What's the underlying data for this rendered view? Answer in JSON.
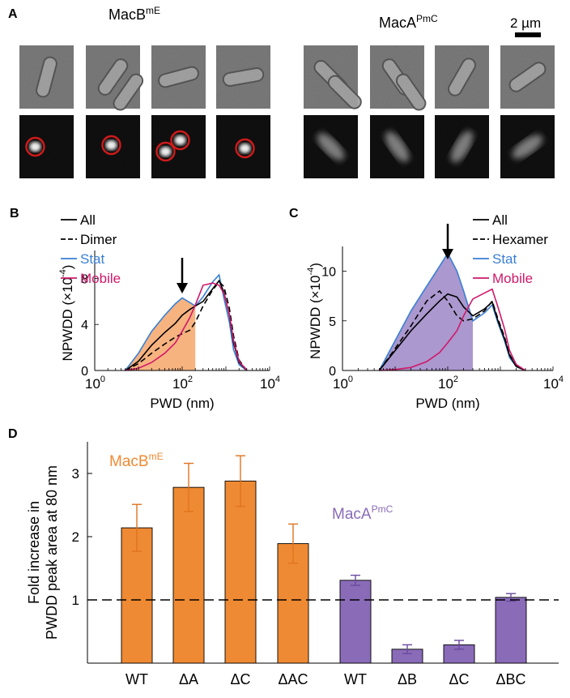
{
  "panel_a": {
    "letter": "A",
    "left_title": "MacB",
    "left_title_sup": "mE",
    "right_title": "MacA",
    "right_title_sup": "PmC",
    "scale_bar_label": "2 µm",
    "cells_left": 4,
    "cells_right": 4
  },
  "chart_data": [
    {
      "panel": "B",
      "type": "line",
      "xscale": "log",
      "xlim": [
        1,
        10000
      ],
      "ylim": [
        0,
        10
      ],
      "xlabel": "PWD (nm)",
      "ylabel": "NPWDD",
      "ylabel_unit": "(×10",
      "ylabel_unit_exp": "-4",
      "ylabel_unit_close": ")",
      "x_ticks": [
        {
          "base": "10",
          "exp": "0",
          "value": 1
        },
        {
          "base": "10",
          "exp": "2",
          "value": 100
        },
        {
          "base": "10",
          "exp": "4",
          "value": 10000
        }
      ],
      "y_ticks": [
        0,
        4,
        8
      ],
      "legend": [
        "All",
        "Dimer",
        "Stat",
        "Mobile"
      ],
      "shaded_region_max_x": 200,
      "arrow_x": 100,
      "series": [
        {
          "name": "Stat",
          "color": "#3a7fd5",
          "x": [
            5,
            10,
            20,
            40,
            70,
            100,
            150,
            200,
            300,
            500,
            700,
            900,
            1200,
            1500,
            2000,
            3000
          ],
          "y": [
            0,
            1.5,
            3.4,
            4.8,
            5.8,
            6.3,
            5.9,
            5.6,
            6.4,
            7.7,
            8.3,
            6.3,
            4.2,
            1.8,
            0.5,
            0
          ]
        },
        {
          "name": "All",
          "color": "#000000",
          "x": [
            5,
            10,
            20,
            40,
            70,
            100,
            150,
            200,
            300,
            500,
            700,
            900,
            1200,
            1500,
            2000,
            3000
          ],
          "y": [
            0,
            0.8,
            2.2,
            3.3,
            4.1,
            4.8,
            5.3,
            5.6,
            6.0,
            7.1,
            7.8,
            6.8,
            4.8,
            2.4,
            0.7,
            0
          ]
        },
        {
          "name": "Dimer",
          "color": "#000000",
          "dash": true,
          "x": [
            5,
            10,
            20,
            40,
            70,
            100,
            150,
            200,
            300,
            500,
            700,
            900,
            1200,
            1500,
            2000,
            3000
          ],
          "y": [
            0,
            0.6,
            1.5,
            2.3,
            2.9,
            3.2,
            3.5,
            4.2,
            5.6,
            7.0,
            7.7,
            7.3,
            5.4,
            3.0,
            0.9,
            0
          ]
        },
        {
          "name": "Mobile",
          "color": "#d0186a",
          "x": [
            5,
            10,
            20,
            40,
            70,
            100,
            150,
            200,
            300,
            500,
            700,
            900,
            1200,
            1500,
            2000,
            3000
          ],
          "y": [
            0,
            0.2,
            0.7,
            1.5,
            2.4,
            3.4,
            4.6,
            5.7,
            7.4,
            7.6,
            7.4,
            6.7,
            4.9,
            2.6,
            0.8,
            0
          ]
        }
      ]
    },
    {
      "panel": "C",
      "type": "line",
      "xscale": "log",
      "xlim": [
        1,
        10000
      ],
      "ylim": [
        0,
        12
      ],
      "xlabel": "PWD (nm)",
      "ylabel": "NPWDD",
      "ylabel_unit": "(×10",
      "ylabel_unit_exp": "-4",
      "ylabel_unit_close": ")",
      "x_ticks": [
        {
          "base": "10",
          "exp": "0",
          "value": 1
        },
        {
          "base": "10",
          "exp": "2",
          "value": 100
        },
        {
          "base": "10",
          "exp": "4",
          "value": 10000
        }
      ],
      "y_ticks": [
        0,
        5,
        10
      ],
      "legend": [
        "All",
        "Hexamer",
        "Stat",
        "Mobile"
      ],
      "shaded_region_max_x": 300,
      "arrow_x": 100,
      "series": [
        {
          "name": "Stat",
          "color": "#3a7fd5",
          "x": [
            5,
            10,
            20,
            40,
            70,
            100,
            150,
            200,
            300,
            500,
            700,
            900,
            1200,
            1500,
            2000,
            3000
          ],
          "y": [
            0,
            3.0,
            6.0,
            8.5,
            10.5,
            11.8,
            10.0,
            8.0,
            5.0,
            5.8,
            6.6,
            4.8,
            3.0,
            1.3,
            0.4,
            0
          ]
        },
        {
          "name": "All",
          "color": "#000000",
          "x": [
            5,
            10,
            20,
            40,
            70,
            100,
            150,
            200,
            300,
            500,
            700,
            900,
            1200,
            1500,
            2000,
            3000
          ],
          "y": [
            0,
            2.0,
            4.0,
            5.7,
            7.0,
            7.7,
            7.4,
            6.4,
            5.5,
            6.2,
            6.9,
            5.0,
            3.2,
            1.5,
            0.4,
            0
          ]
        },
        {
          "name": "Hexamer",
          "color": "#000000",
          "dash": true,
          "x": [
            5,
            10,
            20,
            40,
            70,
            100,
            150,
            200,
            300,
            500,
            700,
            900,
            1200,
            1500,
            2000,
            3000
          ],
          "y": [
            0,
            2.2,
            4.5,
            7.0,
            8.0,
            7.0,
            5.5,
            5.0,
            5.2,
            6.0,
            7.0,
            5.2,
            3.4,
            1.6,
            0.5,
            0
          ]
        },
        {
          "name": "Mobile",
          "color": "#d0186a",
          "x": [
            5,
            10,
            20,
            40,
            70,
            100,
            150,
            200,
            300,
            500,
            700,
            900,
            1200,
            1500,
            2000,
            3000
          ],
          "y": [
            0,
            0.1,
            0.3,
            0.9,
            1.8,
            2.8,
            4.0,
            5.5,
            7.2,
            7.8,
            8.2,
            6.4,
            4.2,
            2.0,
            0.6,
            0
          ]
        }
      ]
    },
    {
      "panel": "D",
      "type": "bar",
      "ylabel_line1": "Fold increase in",
      "ylabel_line2": "PWDD peak area at 80 nm",
      "ylim": [
        0,
        3.5
      ],
      "y_ticks": [
        1,
        2,
        3
      ],
      "reference_line_y": 1,
      "groups": [
        {
          "name": "MacB",
          "name_sup": "mE",
          "color": "#ee8a33",
          "error_color": "#e0731f",
          "categories": [
            "WT",
            "ΔA",
            "ΔC",
            "ΔAC"
          ],
          "values": [
            2.14,
            2.78,
            2.88,
            1.89
          ],
          "errors": [
            0.37,
            0.38,
            0.4,
            0.31
          ]
        },
        {
          "name": "MacA",
          "name_sup": "PmC",
          "color": "#8a6bb8",
          "error_color": "#6a4a9e",
          "categories": [
            "WT",
            "ΔB",
            "ΔC",
            "ΔBC"
          ],
          "values": [
            1.31,
            0.22,
            0.29,
            1.04
          ],
          "errors": [
            0.08,
            0.07,
            0.07,
            0.06
          ]
        }
      ]
    }
  ]
}
